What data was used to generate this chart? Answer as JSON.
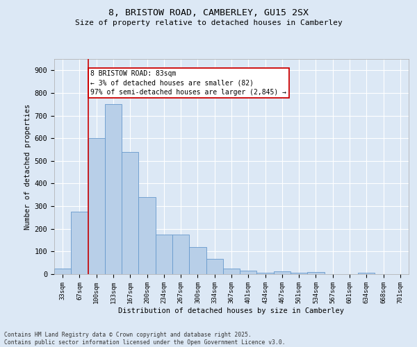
{
  "title_line1": "8, BRISTOW ROAD, CAMBERLEY, GU15 2SX",
  "title_line2": "Size of property relative to detached houses in Camberley",
  "xlabel": "Distribution of detached houses by size in Camberley",
  "ylabel": "Number of detached properties",
  "categories": [
    "33sqm",
    "67sqm",
    "100sqm",
    "133sqm",
    "167sqm",
    "200sqm",
    "234sqm",
    "267sqm",
    "300sqm",
    "334sqm",
    "367sqm",
    "401sqm",
    "434sqm",
    "467sqm",
    "501sqm",
    "534sqm",
    "567sqm",
    "601sqm",
    "634sqm",
    "668sqm",
    "701sqm"
  ],
  "values": [
    25,
    275,
    600,
    750,
    540,
    340,
    175,
    175,
    120,
    68,
    25,
    15,
    5,
    12,
    5,
    8,
    0,
    0,
    5,
    0,
    0
  ],
  "bar_color": "#b8cfe8",
  "bar_edge_color": "#6699cc",
  "vline_color": "#cc0000",
  "vline_x": 1.5,
  "annotation_text": "8 BRISTOW ROAD: 83sqm\n← 3% of detached houses are smaller (82)\n97% of semi-detached houses are larger (2,845) →",
  "annotation_box_color": "#ffffff",
  "annotation_box_edge_color": "#cc0000",
  "ylim": [
    0,
    950
  ],
  "yticks": [
    0,
    100,
    200,
    300,
    400,
    500,
    600,
    700,
    800,
    900
  ],
  "background_color": "#dce8f5",
  "grid_color": "#ffffff",
  "footer_line1": "Contains HM Land Registry data © Crown copyright and database right 2025.",
  "footer_line2": "Contains public sector information licensed under the Open Government Licence v3.0."
}
